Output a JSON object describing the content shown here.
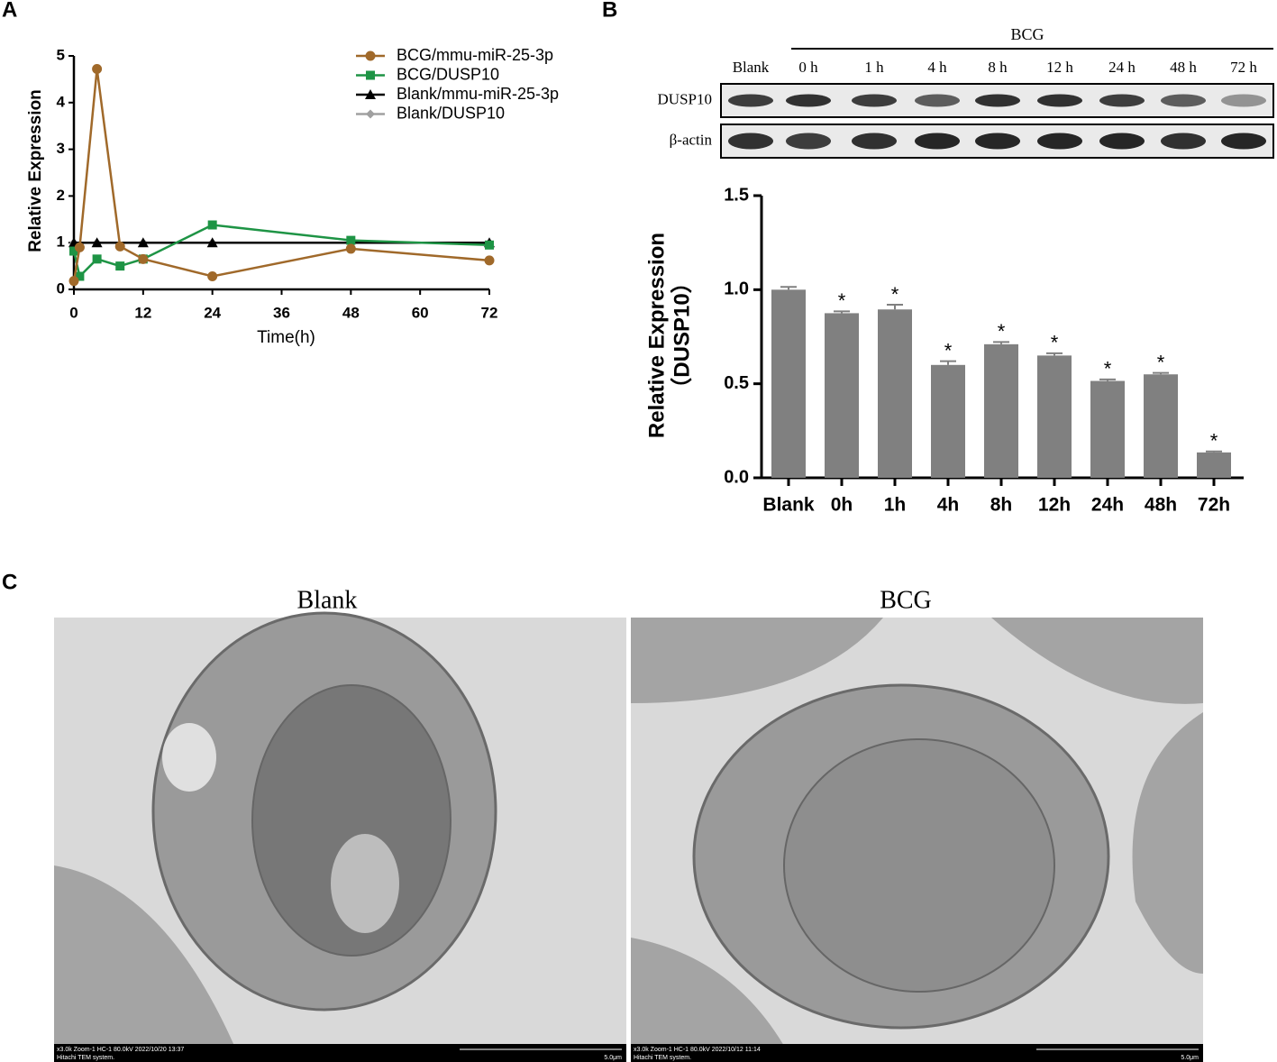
{
  "panel_labels": [
    "A",
    "B",
    "C"
  ],
  "chart_data": [
    {
      "type": "line",
      "x_label": "Time(h)",
      "y_label": "Relative Expression",
      "xlim": [
        0,
        72
      ],
      "xticks": [
        0,
        12,
        24,
        36,
        48,
        60,
        72
      ],
      "ylim": [
        0,
        5
      ],
      "yticks": [
        0,
        1,
        2,
        3,
        4,
        5
      ],
      "legend": "upper right",
      "series": [
        {
          "name": "BCG/mmu-miR-25-3p",
          "color": "#a0692a",
          "marker": "circle",
          "x": [
            0,
            1,
            4,
            8,
            12,
            24,
            48,
            72
          ],
          "values": [
            0.18,
            0.9,
            4.72,
            0.92,
            0.65,
            0.28,
            0.87,
            0.62
          ]
        },
        {
          "name": "BCG/DUSP10",
          "color": "#1e9445",
          "marker": "square",
          "x": [
            0,
            1,
            4,
            8,
            12,
            24,
            48,
            72
          ],
          "values": [
            0.82,
            0.28,
            0.65,
            0.5,
            0.65,
            1.38,
            1.05,
            0.95
          ]
        },
        {
          "name": "Blank/mmu-miR-25-3p",
          "color": "#000000",
          "marker": "triangle",
          "x": [
            0,
            4,
            12,
            24,
            72
          ],
          "values": [
            1,
            1,
            1,
            1,
            1
          ]
        },
        {
          "name": "Blank/DUSP10",
          "color": "#a0a0a0",
          "marker": "diamond",
          "x": [
            0,
            4,
            12,
            24,
            72
          ],
          "values": [
            1,
            1,
            1,
            1,
            1
          ]
        }
      ]
    },
    {
      "type": "bar",
      "y_label": [
        "Relative Expression",
        "（DUSP10）"
      ],
      "categories": [
        "Blank",
        "0h",
        "1h",
        "4h",
        "8h",
        "12h",
        "24h",
        "48h",
        "72h"
      ],
      "values": [
        1.0,
        0.875,
        0.895,
        0.6,
        0.71,
        0.65,
        0.515,
        0.55,
        0.135
      ],
      "errors": [
        0.015,
        0.01,
        0.025,
        0.02,
        0.012,
        0.012,
        0.008,
        0.008,
        0.005
      ],
      "significance": [
        null,
        "*",
        "*",
        "*",
        "*",
        "*",
        "*",
        "*",
        "*"
      ],
      "color": "#808080",
      "ylim": [
        0,
        1.5
      ],
      "yticks": [
        {
          "value": 0,
          "label": "0.0"
        },
        0.5,
        {
          "value": 1,
          "label": "1.0"
        },
        1.5
      ]
    }
  ],
  "blot": {
    "group": "BCG",
    "lanes": [
      "Blank",
      "0 h",
      "1 h",
      "4 h",
      "8 h",
      "12 h",
      "24 h",
      "48 h",
      "72 h"
    ],
    "rows": [
      "DUSP10",
      "β-actin"
    ]
  },
  "tem": {
    "titles": [
      "Blank",
      "BCG"
    ],
    "captions": [
      {
        "info": "x3.0k Zoom-1 HC-1 80.0kV 2022/10/20 13:37",
        "system": "Hitachi TEM system.",
        "scale": "5.0μm"
      },
      {
        "info": "x3.0k Zoom-1 HC-1 80.0kV 2022/10/12 11:14",
        "system": "Hitachi TEM system.",
        "scale": "5.0μm"
      }
    ]
  }
}
